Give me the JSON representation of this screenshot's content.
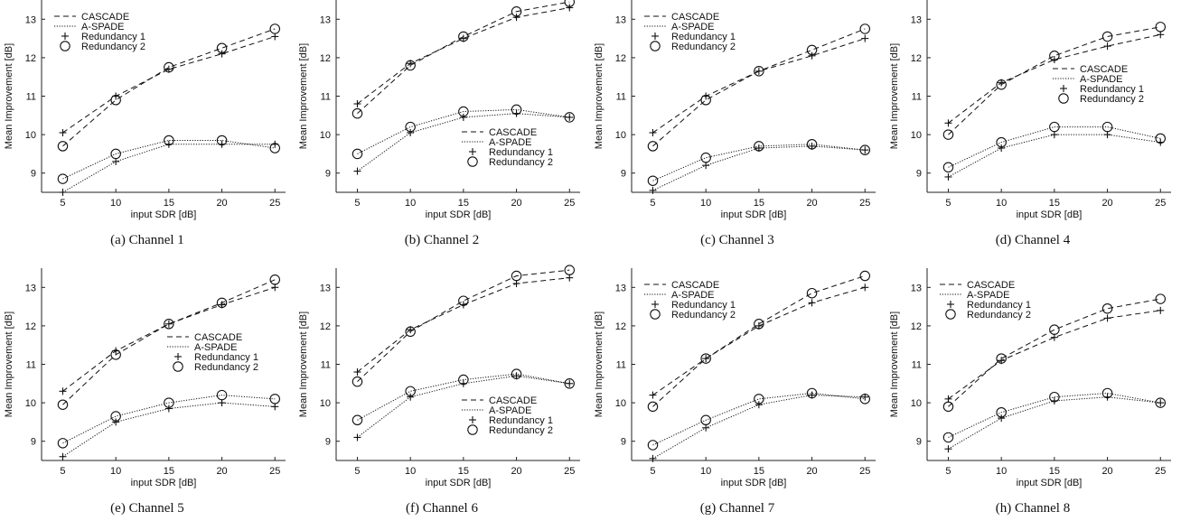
{
  "chart_data": [
    {
      "type": "line",
      "caption": "(a) Channel 1",
      "xlabel": "input SDR [dB]",
      "ylabel": "Mean Improvement [dB]",
      "x": [
        5,
        10,
        15,
        20,
        25
      ],
      "ylim": [
        8.5,
        13.5
      ],
      "yticks": [
        9,
        10,
        11,
        12,
        13
      ],
      "legend_position": "top-left",
      "series": [
        {
          "name": "CASCADE",
          "style": "dashed",
          "marker": "+",
          "values": [
            10.05,
            11.0,
            11.7,
            12.1,
            12.55
          ]
        },
        {
          "name": "CASCADE",
          "style": "dashed",
          "marker": "o",
          "values": [
            9.7,
            10.9,
            11.75,
            12.25,
            12.75
          ]
        },
        {
          "name": "A-SPADE",
          "style": "dotted",
          "marker": "+",
          "values": [
            8.5,
            9.3,
            9.75,
            9.75,
            9.75
          ]
        },
        {
          "name": "A-SPADE",
          "style": "dotted",
          "marker": "o",
          "values": [
            8.85,
            9.5,
            9.85,
            9.85,
            9.65
          ]
        }
      ],
      "legend": [
        "CASCADE",
        "A-SPADE",
        "Redundancy 1",
        "Redundancy 2"
      ]
    },
    {
      "type": "line",
      "caption": "(b) Channel 2",
      "xlabel": "input SDR [dB]",
      "ylabel": "Mean Improvement [dB]",
      "x": [
        5,
        10,
        15,
        20,
        25
      ],
      "ylim": [
        8.5,
        13.5
      ],
      "yticks": [
        9,
        10,
        11,
        12,
        13
      ],
      "legend_position": "bottom-right",
      "series": [
        {
          "name": "CASCADE",
          "style": "dashed",
          "marker": "+",
          "values": [
            10.8,
            11.85,
            12.5,
            13.05,
            13.3
          ]
        },
        {
          "name": "CASCADE",
          "style": "dashed",
          "marker": "o",
          "values": [
            10.55,
            11.8,
            12.55,
            13.2,
            13.45
          ]
        },
        {
          "name": "A-SPADE",
          "style": "dotted",
          "marker": "+",
          "values": [
            9.05,
            10.05,
            10.45,
            10.55,
            10.45
          ]
        },
        {
          "name": "A-SPADE",
          "style": "dotted",
          "marker": "o",
          "values": [
            9.5,
            10.2,
            10.6,
            10.65,
            10.45
          ]
        }
      ],
      "legend": [
        "CASCADE",
        "A-SPADE",
        "Redundancy 1",
        "Redundancy 2"
      ]
    },
    {
      "type": "line",
      "caption": "(c) Channel 3",
      "xlabel": "input SDR [dB]",
      "ylabel": "Mean Improvement [dB]",
      "x": [
        5,
        10,
        15,
        20,
        25
      ],
      "ylim": [
        8.5,
        13.5
      ],
      "yticks": [
        9,
        10,
        11,
        12,
        13
      ],
      "legend_position": "top-left",
      "series": [
        {
          "name": "CASCADE",
          "style": "dashed",
          "marker": "+",
          "values": [
            10.05,
            11.0,
            11.65,
            12.05,
            12.5
          ]
        },
        {
          "name": "CASCADE",
          "style": "dashed",
          "marker": "o",
          "values": [
            9.7,
            10.9,
            11.65,
            12.2,
            12.75
          ]
        },
        {
          "name": "A-SPADE",
          "style": "dotted",
          "marker": "+",
          "values": [
            8.55,
            9.2,
            9.65,
            9.7,
            9.6
          ]
        },
        {
          "name": "A-SPADE",
          "style": "dotted",
          "marker": "o",
          "values": [
            8.8,
            9.4,
            9.7,
            9.75,
            9.6
          ]
        }
      ],
      "legend": [
        "CASCADE",
        "A-SPADE",
        "Redundancy 1",
        "Redundancy 2"
      ]
    },
    {
      "type": "line",
      "caption": "(d) Channel 4",
      "xlabel": "input SDR [dB]",
      "ylabel": "Mean Improvement [dB]",
      "x": [
        5,
        10,
        15,
        20,
        25
      ],
      "ylim": [
        8.5,
        13.5
      ],
      "yticks": [
        9,
        10,
        11,
        12,
        13
      ],
      "legend_position": "right",
      "series": [
        {
          "name": "CASCADE",
          "style": "dashed",
          "marker": "+",
          "values": [
            10.3,
            11.35,
            11.95,
            12.3,
            12.6
          ]
        },
        {
          "name": "CASCADE",
          "style": "dashed",
          "marker": "o",
          "values": [
            10.0,
            11.3,
            12.05,
            12.55,
            12.8
          ]
        },
        {
          "name": "A-SPADE",
          "style": "dotted",
          "marker": "+",
          "values": [
            8.9,
            9.65,
            10.0,
            10.0,
            9.8
          ]
        },
        {
          "name": "A-SPADE",
          "style": "dotted",
          "marker": "o",
          "values": [
            9.15,
            9.8,
            10.2,
            10.2,
            9.9
          ]
        }
      ],
      "legend": [
        "CASCADE",
        "A-SPADE",
        "Redundancy 1",
        "Redundancy 2"
      ]
    },
    {
      "type": "line",
      "caption": "(e) Channel 5",
      "xlabel": "input SDR [dB]",
      "ylabel": "Mean Improvement [dB]",
      "x": [
        5,
        10,
        15,
        20,
        25
      ],
      "ylim": [
        8.5,
        13.5
      ],
      "yticks": [
        9,
        10,
        11,
        12,
        13
      ],
      "legend_position": "right",
      "series": [
        {
          "name": "CASCADE",
          "style": "dashed",
          "marker": "+",
          "values": [
            10.3,
            11.35,
            12.05,
            12.55,
            13.0
          ]
        },
        {
          "name": "CASCADE",
          "style": "dashed",
          "marker": "o",
          "values": [
            9.95,
            11.25,
            12.05,
            12.6,
            13.2
          ]
        },
        {
          "name": "A-SPADE",
          "style": "dotted",
          "marker": "+",
          "values": [
            8.6,
            9.5,
            9.85,
            10.0,
            9.9
          ]
        },
        {
          "name": "A-SPADE",
          "style": "dotted",
          "marker": "o",
          "values": [
            8.95,
            9.65,
            10.0,
            10.2,
            10.1
          ]
        }
      ],
      "legend": [
        "CASCADE",
        "A-SPADE",
        "Redundancy 1",
        "Redundancy 2"
      ]
    },
    {
      "type": "line",
      "caption": "(f) Channel 6",
      "xlabel": "input SDR [dB]",
      "ylabel": "Mean Improvement [dB]",
      "x": [
        5,
        10,
        15,
        20,
        25
      ],
      "ylim": [
        8.5,
        13.5
      ],
      "yticks": [
        9,
        10,
        11,
        12,
        13
      ],
      "legend_position": "bottom-right",
      "series": [
        {
          "name": "CASCADE",
          "style": "dashed",
          "marker": "+",
          "values": [
            10.8,
            11.9,
            12.55,
            13.1,
            13.25
          ]
        },
        {
          "name": "CASCADE",
          "style": "dashed",
          "marker": "o",
          "values": [
            10.55,
            11.85,
            12.65,
            13.3,
            13.45
          ]
        },
        {
          "name": "A-SPADE",
          "style": "dotted",
          "marker": "+",
          "values": [
            9.1,
            10.15,
            10.5,
            10.7,
            10.5
          ]
        },
        {
          "name": "A-SPADE",
          "style": "dotted",
          "marker": "o",
          "values": [
            9.55,
            10.3,
            10.6,
            10.75,
            10.5
          ]
        }
      ],
      "legend": [
        "CASCADE",
        "A-SPADE",
        "Redundancy 1",
        "Redundancy 2"
      ]
    },
    {
      "type": "line",
      "caption": "(g) Channel 7",
      "xlabel": "input SDR [dB]",
      "ylabel": "Mean Improvement [dB]",
      "x": [
        5,
        10,
        15,
        20,
        25
      ],
      "ylim": [
        8.5,
        13.5
      ],
      "yticks": [
        9,
        10,
        11,
        12,
        13
      ],
      "legend_position": "top-left",
      "series": [
        {
          "name": "CASCADE",
          "style": "dashed",
          "marker": "+",
          "values": [
            10.2,
            11.15,
            12.0,
            12.6,
            13.0
          ]
        },
        {
          "name": "CASCADE",
          "style": "dashed",
          "marker": "o",
          "values": [
            9.9,
            11.15,
            12.05,
            12.85,
            13.3
          ]
        },
        {
          "name": "A-SPADE",
          "style": "dotted",
          "marker": "+",
          "values": [
            8.55,
            9.35,
            9.95,
            10.2,
            10.15
          ]
        },
        {
          "name": "A-SPADE",
          "style": "dotted",
          "marker": "o",
          "values": [
            8.9,
            9.55,
            10.1,
            10.25,
            10.1
          ]
        }
      ],
      "legend": [
        "CASCADE",
        "A-SPADE",
        "Redundancy 1",
        "Redundancy 2"
      ]
    },
    {
      "type": "line",
      "caption": "(h) Channel 8",
      "xlabel": "input SDR [dB]",
      "ylabel": "Mean Improvement [dB]",
      "x": [
        5,
        10,
        15,
        20,
        25
      ],
      "ylim": [
        8.5,
        13.5
      ],
      "yticks": [
        9,
        10,
        11,
        12,
        13
      ],
      "legend_position": "top-left",
      "series": [
        {
          "name": "CASCADE",
          "style": "dashed",
          "marker": "+",
          "values": [
            10.1,
            11.1,
            11.7,
            12.2,
            12.4
          ]
        },
        {
          "name": "CASCADE",
          "style": "dashed",
          "marker": "o",
          "values": [
            9.9,
            11.15,
            11.9,
            12.45,
            12.7
          ]
        },
        {
          "name": "A-SPADE",
          "style": "dotted",
          "marker": "+",
          "values": [
            8.8,
            9.6,
            10.05,
            10.15,
            10.0
          ]
        },
        {
          "name": "A-SPADE",
          "style": "dotted",
          "marker": "o",
          "values": [
            9.1,
            9.75,
            10.15,
            10.25,
            10.0
          ]
        }
      ],
      "legend": [
        "CASCADE",
        "A-SPADE",
        "Redundancy 1",
        "Redundancy 2"
      ]
    }
  ]
}
